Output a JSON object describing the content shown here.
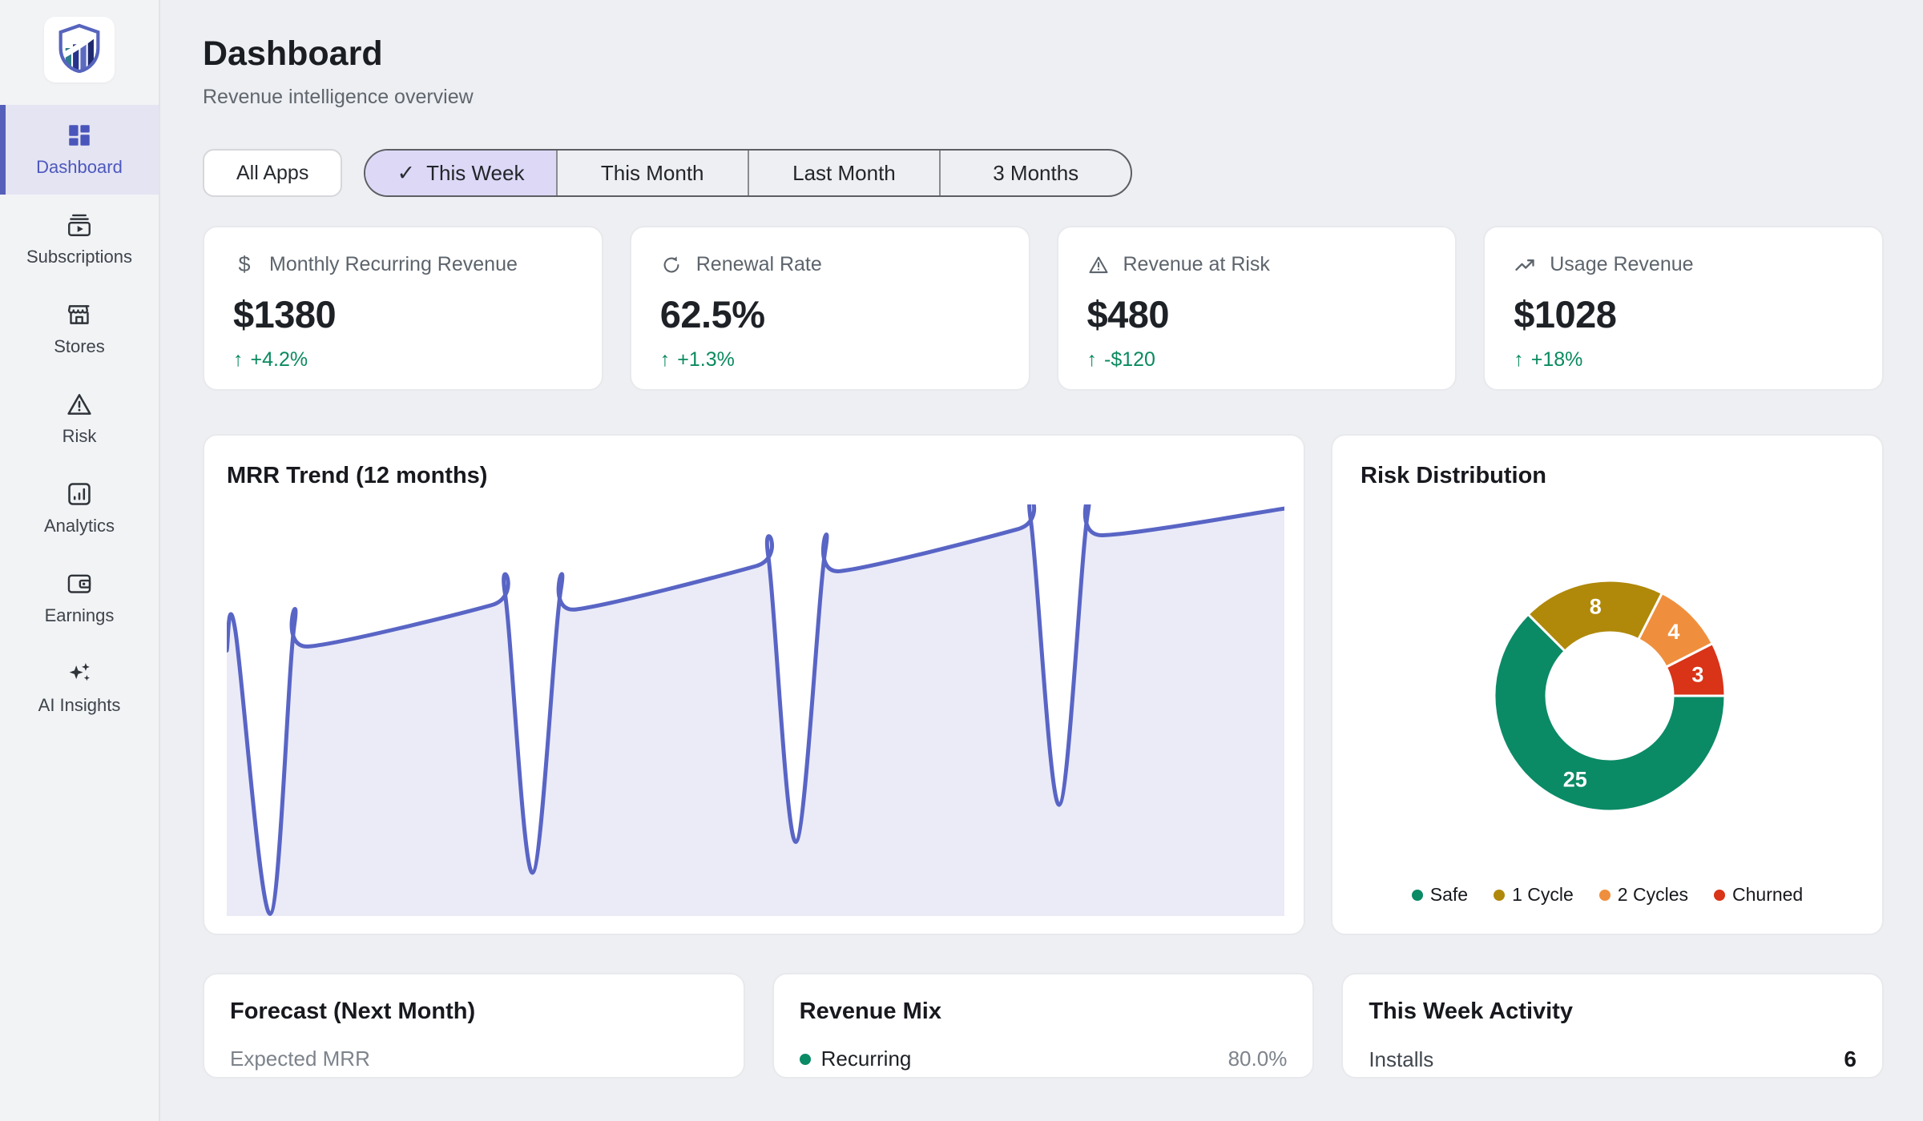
{
  "header": {
    "title": "Dashboard",
    "subtitle": "Revenue intelligence overview"
  },
  "sidebar": {
    "logo": "shield-chart-logo",
    "items": [
      {
        "label": "Dashboard",
        "icon": "dashboard-icon",
        "active": true
      },
      {
        "label": "Subscriptions",
        "icon": "subscriptions-icon",
        "active": false
      },
      {
        "label": "Stores",
        "icon": "storefront-icon",
        "active": false
      },
      {
        "label": "Risk",
        "icon": "warning-icon",
        "active": false
      },
      {
        "label": "Analytics",
        "icon": "analytics-icon",
        "active": false
      },
      {
        "label": "Earnings",
        "icon": "wallet-icon",
        "active": false
      },
      {
        "label": "AI Insights",
        "icon": "sparkles-icon",
        "active": false
      }
    ]
  },
  "filters": {
    "all_apps_label": "All Apps",
    "segments": [
      {
        "label": "This Week",
        "selected": true,
        "check": "✓"
      },
      {
        "label": "This Month",
        "selected": false
      },
      {
        "label": "Last Month",
        "selected": false
      },
      {
        "label": "3 Months",
        "selected": false
      }
    ]
  },
  "kpis": [
    {
      "icon": "dollar-icon",
      "glyph": "$",
      "label": "Monthly Recurring Revenue",
      "value": "$1380",
      "arrow": "↑",
      "delta": "+4.2%"
    },
    {
      "icon": "renew-icon",
      "label": "Renewal Rate",
      "value": "62.5%",
      "arrow": "↑",
      "delta": "+1.3%"
    },
    {
      "icon": "warning-icon",
      "label": "Revenue at Risk",
      "value": "$480",
      "arrow": "↑",
      "delta": "-$120"
    },
    {
      "icon": "trending-up-icon",
      "label": "Usage Revenue",
      "value": "$1028",
      "arrow": "↑",
      "delta": "+18%"
    }
  ],
  "mrr_card": {
    "title": "MRR Trend (12 months)"
  },
  "risk_card": {
    "title": "Risk Distribution",
    "legend": [
      {
        "label": "Safe",
        "color": "#0b8a66"
      },
      {
        "label": "1 Cycle",
        "color": "#b0890b"
      },
      {
        "label": "2 Cycles",
        "color": "#ef8f3d"
      },
      {
        "label": "Churned",
        "color": "#d93318"
      }
    ]
  },
  "bottom": {
    "forecast": {
      "title": "Forecast (Next Month)",
      "label": "Expected MRR"
    },
    "revenue_mix": {
      "title": "Revenue Mix",
      "row": {
        "label": "Recurring",
        "value": "80.0%",
        "dot_color": "#0b8a66"
      }
    },
    "activity": {
      "title": "This Week Activity",
      "row": {
        "label": "Installs",
        "value": "6"
      }
    }
  },
  "colors": {
    "accent_indigo": "#5560bb",
    "active_nav_bg": "#e4e4f3",
    "selected_segment_bg": "#dcd8f6",
    "positive_green": "#0a8a5f",
    "page_bg": "#edeff2",
    "card_border": "#e8e9ed"
  },
  "chart_data": [
    {
      "type": "line",
      "title": "MRR Trend (12 months)",
      "description": "Upward-trending MRR area line over 12 months with four deep periodic churn dips; no visible axes, ticks or gridlines",
      "line_color": "#5965c5",
      "fill_color": "rgba(89,101,197,0.13)",
      "axes_visible": false,
      "series": [
        {
          "name": "MRR",
          "points_norm": [
            [
              0.0,
              0.355
            ],
            [
              0.008,
              0.305
            ],
            [
              0.041,
              0.995
            ],
            [
              0.064,
              0.29
            ],
            [
              0.078,
              0.345
            ],
            [
              0.25,
              0.245
            ],
            [
              0.263,
              0.215
            ],
            [
              0.289,
              0.895
            ],
            [
              0.316,
              0.205
            ],
            [
              0.33,
              0.255
            ],
            [
              0.5,
              0.15
            ],
            [
              0.512,
              0.125
            ],
            [
              0.538,
              0.82
            ],
            [
              0.566,
              0.11
            ],
            [
              0.58,
              0.162
            ],
            [
              0.748,
              0.06
            ],
            [
              0.76,
              0.035
            ],
            [
              0.787,
              0.73
            ],
            [
              0.814,
              0.022
            ],
            [
              0.828,
              0.075
            ],
            [
              1.0,
              0.01
            ]
          ]
        }
      ]
    },
    {
      "type": "pie",
      "donut": true,
      "title": "Risk Distribution",
      "categories": [
        "Safe",
        "1 Cycle",
        "2 Cycles",
        "Churned"
      ],
      "values": [
        25,
        8,
        4,
        3
      ],
      "colors": [
        "#0b8a66",
        "#b0890b",
        "#ef8f3d",
        "#d93318"
      ],
      "data_label_color": "#ffffff",
      "legend_position": "bottom",
      "start_angle_deg": 0,
      "direction": "clockwise"
    }
  ]
}
